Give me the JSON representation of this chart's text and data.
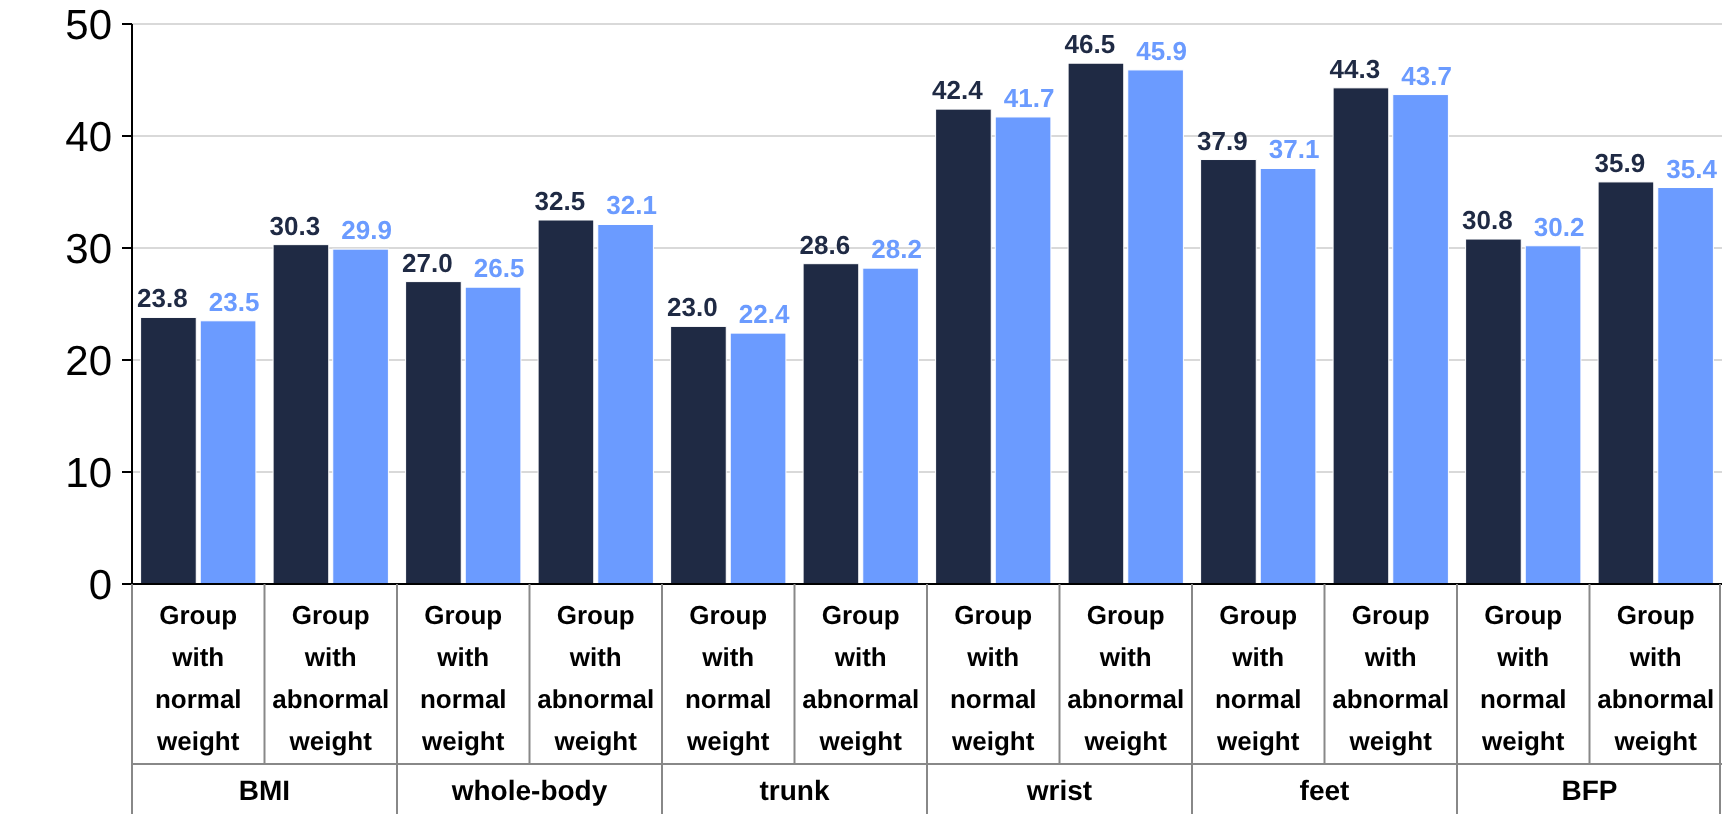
{
  "chart_data": {
    "type": "bar",
    "categories": [
      "Group with normal weight",
      "Group with abnormal weight",
      "Group with normal weight",
      "Group with abnormal weight",
      "Group with normal weight",
      "Group with abnormal weight",
      "Group with normal weight",
      "Group with abnormal weight",
      "Group with normal weight",
      "Group with abnormal weight",
      "Group with normal weight",
      "Group with abnormal weight"
    ],
    "series": [
      {
        "color": "#1f2a44",
        "values": [
          23.8,
          30.3,
          27.0,
          32.5,
          23.0,
          28.6,
          42.4,
          46.5,
          37.9,
          44.3,
          30.8,
          35.9
        ],
        "value_labels": [
          "23.8",
          "30.3",
          "27.0",
          "32.5",
          "23.0",
          "28.6",
          "42.4",
          "46.5",
          "37.9",
          "44.3",
          "30.8",
          "35.9"
        ]
      },
      {
        "color": "#6b9bff",
        "values": [
          23.5,
          29.9,
          26.5,
          32.1,
          22.4,
          28.2,
          41.7,
          45.9,
          37.1,
          43.7,
          30.2,
          35.4
        ],
        "value_labels": [
          "23.5",
          "29.9",
          "26.5",
          "32.1",
          "22.4",
          "28.2",
          "41.7",
          "45.9",
          "37.1",
          "43.7",
          "30.2",
          "35.4"
        ]
      }
    ],
    "annotations": [
      "BMI",
      "whole-body",
      "trunk",
      "wrist",
      "feet",
      "BFP"
    ],
    "ylim": [
      0,
      50
    ],
    "yticks": [
      0,
      10,
      20,
      30,
      40,
      50
    ],
    "grid": "y"
  }
}
